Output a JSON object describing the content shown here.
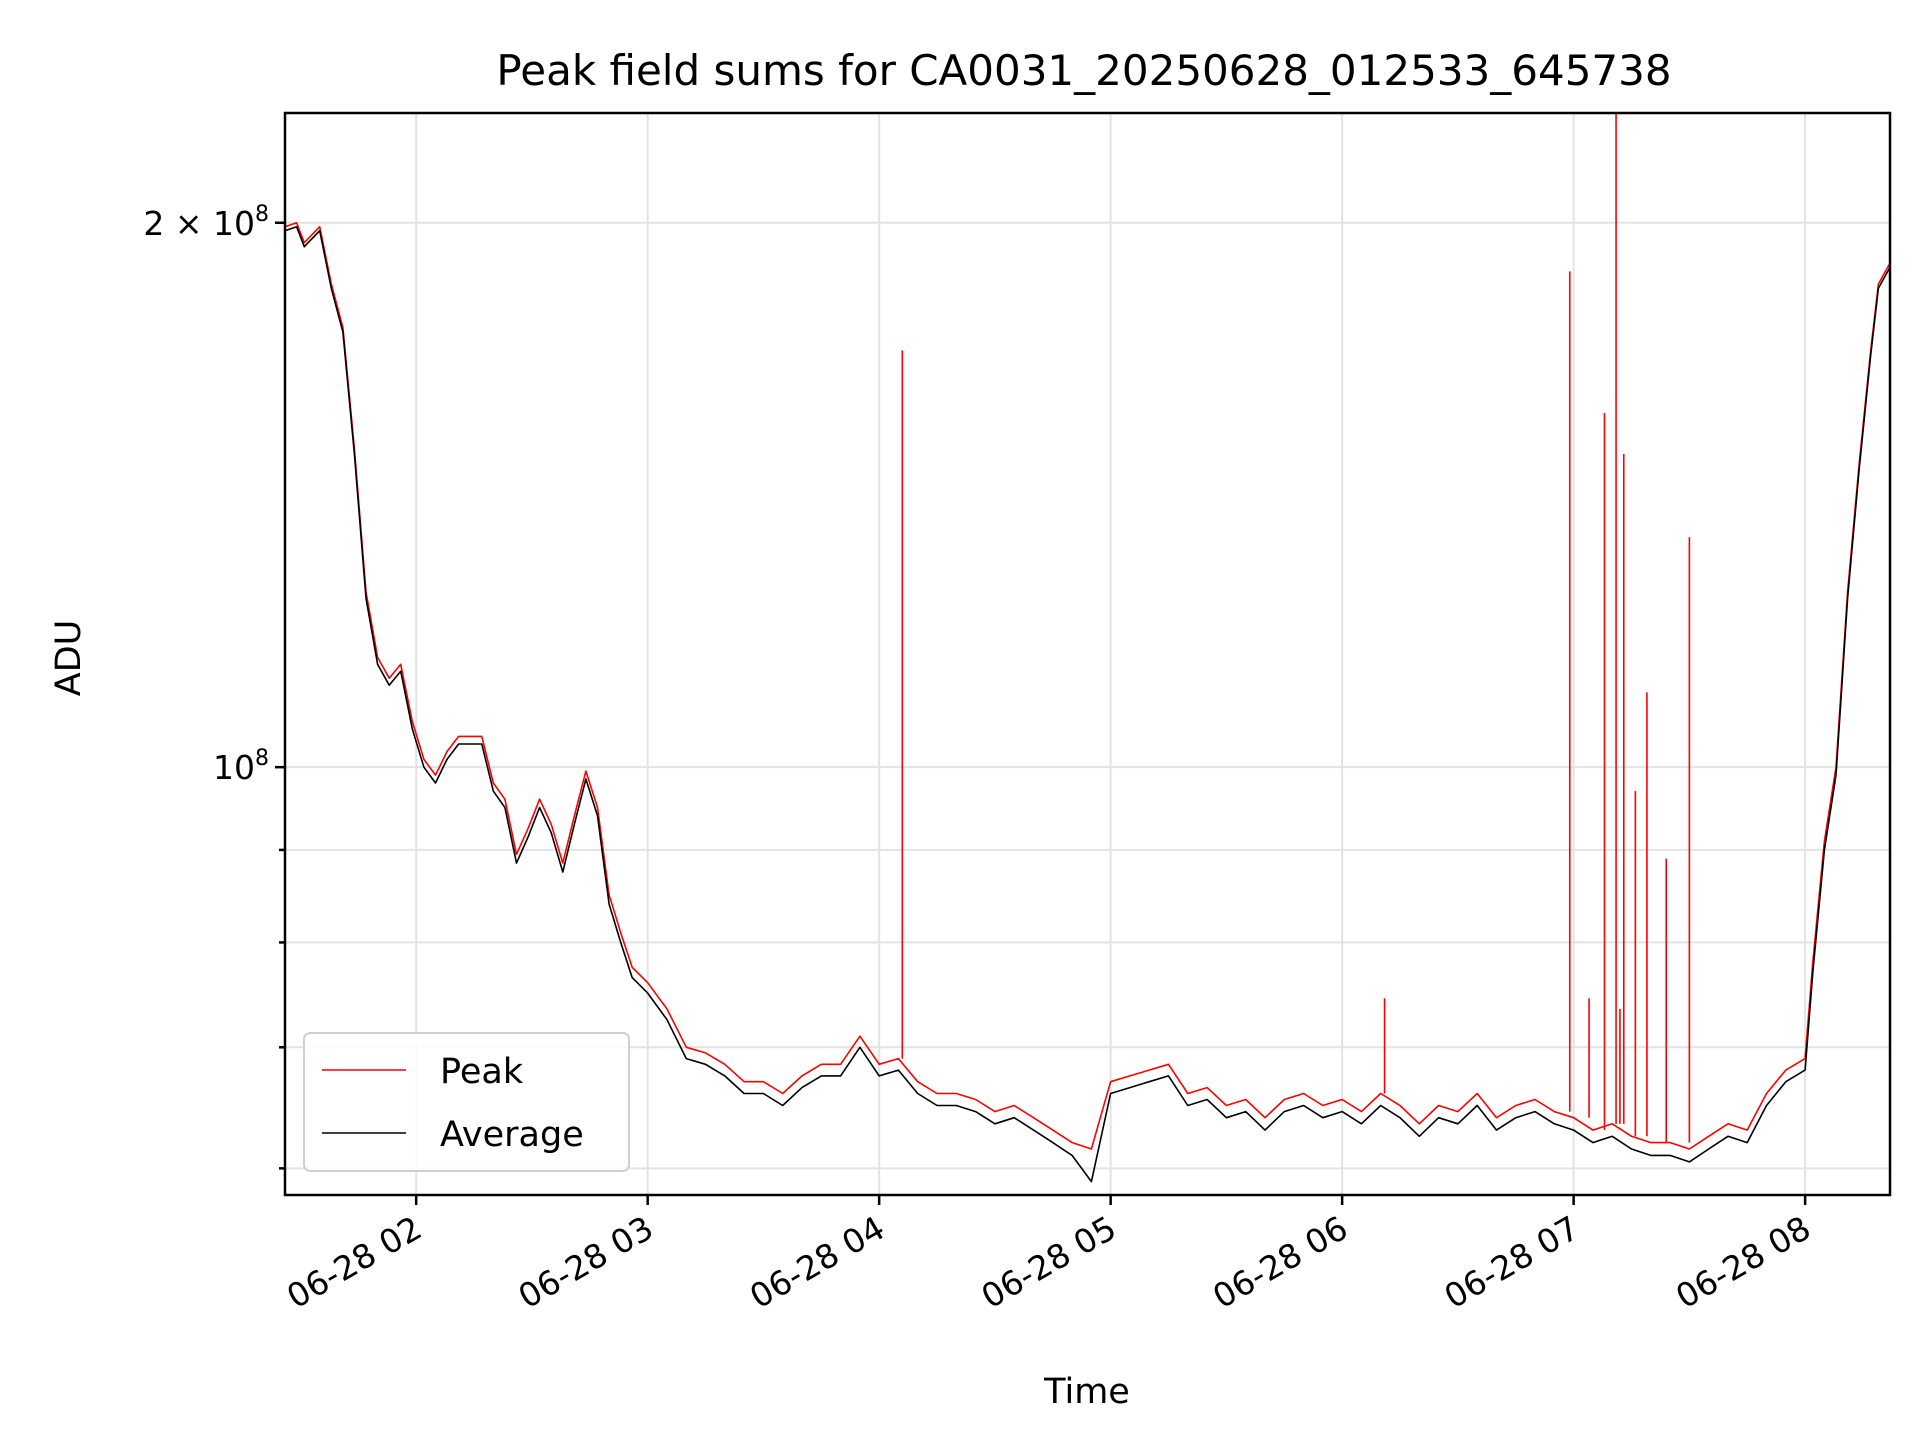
{
  "chart_data": {
    "type": "line",
    "title": "Peak field sums for CA0031_20250628_012533_645738",
    "xlabel": "Time",
    "ylabel": "ADU",
    "y_scale": "log",
    "ylim": [
      58000000.0,
      230000000.0
    ],
    "xlim": [
      "2025-06-28 01:26",
      "2025-06-28 08:22"
    ],
    "x_ticks": [
      "06-28 02",
      "06-28 03",
      "06-28 04",
      "06-28 05",
      "06-28 06",
      "06-28 07",
      "06-28 08"
    ],
    "x_tick_times": [
      "2025-06-28 02:00",
      "2025-06-28 03:00",
      "2025-06-28 04:00",
      "2025-06-28 05:00",
      "2025-06-28 06:00",
      "2025-06-28 07:00",
      "2025-06-28 08:00"
    ],
    "y_ticks": [
      {
        "value": 200000000.0,
        "base": "2 × 10",
        "exp": "8"
      },
      {
        "value": 100000000.0,
        "base": "10",
        "exp": "8"
      }
    ],
    "y_minor_ticks": [
      60000000.0,
      70000000.0,
      80000000.0,
      90000000.0
    ],
    "grid": true,
    "legend_position": "lower-left",
    "colors": {
      "Peak": "#ff0000",
      "Average": "#000000"
    },
    "x": [
      "2025-06-28 01:26",
      "2025-06-28 01:29",
      "2025-06-28 01:31",
      "2025-06-28 01:35",
      "2025-06-28 01:38",
      "2025-06-28 01:41",
      "2025-06-28 01:44",
      "2025-06-28 01:47",
      "2025-06-28 01:50",
      "2025-06-28 01:53",
      "2025-06-28 01:56",
      "2025-06-28 01:59",
      "2025-06-28 02:02",
      "2025-06-28 02:05",
      "2025-06-28 02:08",
      "2025-06-28 02:11",
      "2025-06-28 02:14",
      "2025-06-28 02:17",
      "2025-06-28 02:20",
      "2025-06-28 02:23",
      "2025-06-28 02:26",
      "2025-06-28 02:29",
      "2025-06-28 02:32",
      "2025-06-28 02:35",
      "2025-06-28 02:38",
      "2025-06-28 02:41",
      "2025-06-28 02:44",
      "2025-06-28 02:47",
      "2025-06-28 02:50",
      "2025-06-28 02:53",
      "2025-06-28 02:56",
      "2025-06-28 03:00",
      "2025-06-28 03:05",
      "2025-06-28 03:10",
      "2025-06-28 03:15",
      "2025-06-28 03:20",
      "2025-06-28 03:25",
      "2025-06-28 03:30",
      "2025-06-28 03:35",
      "2025-06-28 03:40",
      "2025-06-28 03:45",
      "2025-06-28 03:50",
      "2025-06-28 03:55",
      "2025-06-28 04:00",
      "2025-06-28 04:05",
      "2025-06-28 04:10",
      "2025-06-28 04:15",
      "2025-06-28 04:20",
      "2025-06-28 04:25",
      "2025-06-28 04:30",
      "2025-06-28 04:35",
      "2025-06-28 04:40",
      "2025-06-28 04:45",
      "2025-06-28 04:50",
      "2025-06-28 04:55",
      "2025-06-28 05:00",
      "2025-06-28 05:05",
      "2025-06-28 05:10",
      "2025-06-28 05:15",
      "2025-06-28 05:20",
      "2025-06-28 05:25",
      "2025-06-28 05:30",
      "2025-06-28 05:35",
      "2025-06-28 05:40",
      "2025-06-28 05:45",
      "2025-06-28 05:50",
      "2025-06-28 05:55",
      "2025-06-28 06:00",
      "2025-06-28 06:05",
      "2025-06-28 06:10",
      "2025-06-28 06:15",
      "2025-06-28 06:20",
      "2025-06-28 06:25",
      "2025-06-28 06:30",
      "2025-06-28 06:35",
      "2025-06-28 06:40",
      "2025-06-28 06:45",
      "2025-06-28 06:50",
      "2025-06-28 06:55",
      "2025-06-28 07:00",
      "2025-06-28 07:05",
      "2025-06-28 07:10",
      "2025-06-28 07:15",
      "2025-06-28 07:20",
      "2025-06-28 07:25",
      "2025-06-28 07:30",
      "2025-06-28 07:35",
      "2025-06-28 07:40",
      "2025-06-28 07:45",
      "2025-06-28 07:50",
      "2025-06-28 07:55",
      "2025-06-28 08:00",
      "2025-06-28 08:02",
      "2025-06-28 08:05",
      "2025-06-28 08:08",
      "2025-06-28 08:11",
      "2025-06-28 08:14",
      "2025-06-28 08:17",
      "2025-06-28 08:19",
      "2025-06-28 08:22"
    ],
    "series": [
      {
        "name": "Peak",
        "values": [
          199000000.0,
          200000000.0,
          195000000.0,
          199000000.0,
          185000000.0,
          175000000.0,
          150000000.0,
          125000000.0,
          115000000.0,
          112000000.0,
          114000000.0,
          106000000.0,
          101000000.0,
          99000000.0,
          102000000.0,
          104000000.0,
          104000000.0,
          104000000.0,
          98000000.0,
          96000000.0,
          89500000.0,
          92500000.0,
          96000000.0,
          93000000.0,
          88500000.0,
          94000000.0,
          99500000.0,
          95000000.0,
          85000000.0,
          81000000.0,
          77500000.0,
          76000000.0,
          73500000.0,
          70000000.0,
          69500000.0,
          68500000.0,
          67000000.0,
          67000000.0,
          66000000.0,
          67500000.0,
          68500000.0,
          68500000.0,
          71000000.0,
          68500000.0,
          69000000.0,
          67000000.0,
          66000000.0,
          66000000.0,
          65500000.0,
          64500000.0,
          65000000.0,
          64000000.0,
          63000000.0,
          62000000.0,
          61500000.0,
          67000000.0,
          67500000.0,
          68000000.0,
          68500000.0,
          66000000.0,
          66500000.0,
          65000000.0,
          65500000.0,
          64000000.0,
          65500000.0,
          66000000.0,
          65000000.0,
          65500000.0,
          64500000.0,
          66000000.0,
          65000000.0,
          63500000.0,
          65000000.0,
          64500000.0,
          66000000.0,
          64000000.0,
          65000000.0,
          65500000.0,
          64500000.0,
          64000000.0,
          63000000.0,
          63500000.0,
          62500000.0,
          62000000.0,
          62000000.0,
          61500000.0,
          62500000.0,
          63500000.0,
          63000000.0,
          66000000.0,
          68000000.0,
          69000000.0,
          78000000.0,
          91000000.0,
          100000000.0,
          125000000.0,
          147000000.0,
          170000000.0,
          185000000.0,
          190000000.0
        ],
        "spikes": [
          {
            "time": "2025-06-28 04:06",
            "value": 170000000.0
          },
          {
            "time": "2025-06-28 06:11",
            "value": 74500000.0
          },
          {
            "time": "2025-06-28 06:59",
            "value": 188000000.0
          },
          {
            "time": "2025-06-28 07:04",
            "value": 74500000.0
          },
          {
            "time": "2025-06-28 07:08",
            "value": 157000000.0
          },
          {
            "time": "2025-06-28 07:11",
            "value": 230000000.0
          },
          {
            "time": "2025-06-28 07:12",
            "value": 73500000.0
          },
          {
            "time": "2025-06-28 07:13",
            "value": 149000000.0
          },
          {
            "time": "2025-06-28 07:16",
            "value": 97000000.0
          },
          {
            "time": "2025-06-28 07:19",
            "value": 110000000.0
          },
          {
            "time": "2025-06-28 07:24",
            "value": 89000000.0
          },
          {
            "time": "2025-06-28 07:30",
            "value": 134000000.0
          }
        ]
      },
      {
        "name": "Average",
        "values": [
          198000000.0,
          199000000.0,
          194000000.0,
          198000000.0,
          184000000.0,
          174000000.0,
          149000000.0,
          124000000.0,
          114000000.0,
          111000000.0,
          113000000.0,
          105000000.0,
          100000000.0,
          98000000.0,
          101000000.0,
          103000000.0,
          103000000.0,
          103000000.0,
          97000000.0,
          95000000.0,
          88500000.0,
          91500000.0,
          95000000.0,
          92000000.0,
          87500000.0,
          93000000.0,
          98500000.0,
          94000000.0,
          84000000.0,
          80000000.0,
          76500000.0,
          75000000.0,
          72500000.0,
          69000000.0,
          68500000.0,
          67500000.0,
          66000000.0,
          66000000.0,
          65000000.0,
          66500000.0,
          67500000.0,
          67500000.0,
          70000000.0,
          67500000.0,
          68000000.0,
          66000000.0,
          65000000.0,
          65000000.0,
          64500000.0,
          63500000.0,
          64000000.0,
          63000000.0,
          62000000.0,
          61000000.0,
          59000000.0,
          66000000.0,
          66500000.0,
          67000000.0,
          67500000.0,
          65000000.0,
          65500000.0,
          64000000.0,
          64500000.0,
          63000000.0,
          64500000.0,
          65000000.0,
          64000000.0,
          64500000.0,
          63500000.0,
          65000000.0,
          64000000.0,
          62500000.0,
          64000000.0,
          63500000.0,
          65000000.0,
          63000000.0,
          64000000.0,
          64500000.0,
          63500000.0,
          63000000.0,
          62000000.0,
          62500000.0,
          61500000.0,
          61000000.0,
          61000000.0,
          60500000.0,
          61500000.0,
          62500000.0,
          62000000.0,
          65000000.0,
          67000000.0,
          68000000.0,
          77000000.0,
          90000000.0,
          99000000.0,
          124000000.0,
          146000000.0,
          169000000.0,
          184000000.0,
          189000000.0
        ]
      }
    ]
  }
}
